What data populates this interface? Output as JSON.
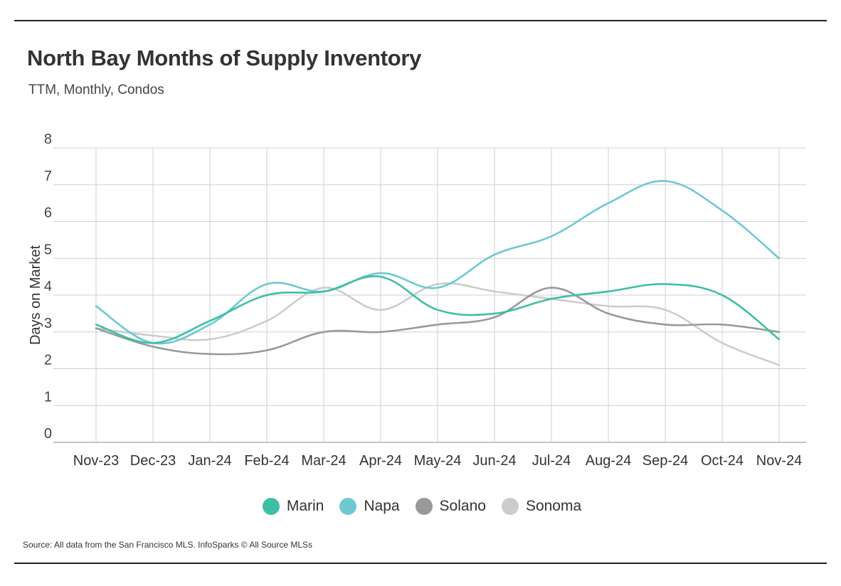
{
  "header": {
    "title": "North Bay Months of Supply Inventory",
    "subtitle": "TTM, Monthly, Condos"
  },
  "footer": {
    "source": "Source:  All data from the San Francisco MLS. InfoSparks © All Source MLSs"
  },
  "chart_data": {
    "type": "line",
    "title": "North Bay Months of Supply Inventory",
    "subtitle": "TTM, Monthly, Condos",
    "xlabel": "",
    "ylabel": "Days on Market",
    "ylim": [
      0,
      8
    ],
    "yticks": [
      0,
      1,
      2,
      3,
      4,
      5,
      6,
      7,
      8
    ],
    "grid": true,
    "legend_position": "bottom",
    "categories": [
      "Nov-23",
      "Dec-23",
      "Jan-24",
      "Feb-24",
      "Mar-24",
      "Apr-24",
      "May-24",
      "Jun-24",
      "Jul-24",
      "Aug-24",
      "Sep-24",
      "Oct-24",
      "Nov-24"
    ],
    "series": [
      {
        "name": "Marin",
        "color": "#3dbfa3",
        "values": [
          3.2,
          2.7,
          3.3,
          4.0,
          4.1,
          4.5,
          3.6,
          3.5,
          3.9,
          4.1,
          4.3,
          4.0,
          2.8
        ]
      },
      {
        "name": "Napa",
        "color": "#6ec8d3",
        "values": [
          3.7,
          2.7,
          3.2,
          4.3,
          4.1,
          4.6,
          4.2,
          5.1,
          5.6,
          6.5,
          7.1,
          6.3,
          5.0
        ]
      },
      {
        "name": "Solano",
        "color": "#999999",
        "values": [
          3.1,
          2.6,
          2.4,
          2.5,
          3.0,
          3.0,
          3.2,
          3.4,
          4.2,
          3.5,
          3.2,
          3.2,
          3.0
        ]
      },
      {
        "name": "Sonoma",
        "color": "#cccccc",
        "values": [
          3.1,
          2.9,
          2.8,
          3.3,
          4.2,
          3.6,
          4.3,
          4.1,
          3.9,
          3.7,
          3.6,
          2.7,
          2.1
        ]
      }
    ]
  }
}
